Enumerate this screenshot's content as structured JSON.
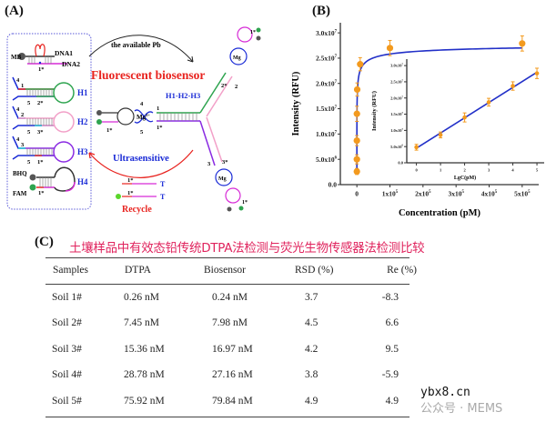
{
  "panel_a": {
    "label": "(A)",
    "legend_box": {
      "dna1": "DNA1",
      "dna2": "DNA2",
      "mb": "MB",
      "dna_site": "1*",
      "hairpins": [
        {
          "name": "H1",
          "top_num": "4",
          "mid_num": "1",
          "bot_nums": [
            "5",
            "2*"
          ]
        },
        {
          "name": "H2",
          "top_num": "4",
          "mid_num": "2",
          "bot_nums": [
            "5",
            "3*"
          ]
        },
        {
          "name": "H3",
          "top_num": "4",
          "mid_num": "3",
          "bot_nums": [
            "5",
            "1*"
          ]
        },
        {
          "name": "H4",
          "quencher": "BHQ",
          "fluor": "FAM",
          "site": "1*"
        }
      ]
    },
    "arrow_top_label": "the available Pb",
    "title": "Fluorescent biosensor",
    "complex_label": "H1-H2-H3",
    "arrow_bottom_label": "Ultrasensitive",
    "recycle_label": "Recycle",
    "mg": "Mg",
    "mg_charge": "2+",
    "strand_site": "1*",
    "strand_end": "T",
    "junction_nums": {
      "n4": "4",
      "n5": "5",
      "n1": "1",
      "n1s": "1*",
      "n2": "2",
      "n2s": "2*",
      "n3": "3",
      "n3s": "3*"
    },
    "colors": {
      "title": "#e8231f",
      "label_blue": "#1a2bd6",
      "box_border": "#5a5ad8",
      "h1": "#2ea44f",
      "h2": "#f2a0c8",
      "h3": "#8a2be2",
      "strand_magenta": "#d62ad6",
      "red": "#e8231f",
      "fam": "#2ea44f"
    }
  },
  "panel_b": {
    "label": "(B)"
  },
  "chart_data": [
    {
      "type": "scatter",
      "xlabel": "Concentration (pM)",
      "ylabel": "Intensity (RFU)",
      "xlim": [
        -50000,
        550000
      ],
      "ylim": [
        0,
        32000000
      ],
      "x_ticks": [
        {
          "v": 0,
          "label": "0"
        },
        {
          "v": 100000,
          "label": "1x10",
          "exp": "5"
        },
        {
          "v": 200000,
          "label": "2x10",
          "exp": "5"
        },
        {
          "v": 300000,
          "label": "3x10",
          "exp": "5"
        },
        {
          "v": 400000,
          "label": "4x10",
          "exp": "5"
        },
        {
          "v": 500000,
          "label": "5x10",
          "exp": "5"
        }
      ],
      "y_ticks": [
        {
          "v": 0,
          "label": "0.0"
        },
        {
          "v": 5000000,
          "label": "5.0x10",
          "exp": "6"
        },
        {
          "v": 10000000,
          "label": "1.0x10",
          "exp": "7"
        },
        {
          "v": 15000000,
          "label": "1.5x10",
          "exp": "7"
        },
        {
          "v": 20000000,
          "label": "2.0x10",
          "exp": "7"
        },
        {
          "v": 25000000,
          "label": "2.5x10",
          "exp": "7"
        },
        {
          "v": 30000000,
          "label": "3.0x10",
          "exp": "7"
        }
      ],
      "x": [
        0,
        1,
        10,
        100,
        1000,
        10000,
        100000,
        500000
      ],
      "y": [
        2600000,
        5000000,
        8700000,
        14000000,
        18800000,
        23800000,
        27000000,
        27900000
      ],
      "error": [
        600000,
        900000,
        1000000,
        1500000,
        1300000,
        1300000,
        1500000,
        1500000
      ],
      "fit": "saturation curve",
      "marker_color": "#f39a1e",
      "line_color": "#2230c8",
      "grid": false
    },
    {
      "type": "scatter",
      "inset": true,
      "xlabel": "LgC(pM)",
      "ylabel": "Intensity (RFU)",
      "xlim": [
        -0.4,
        5.3
      ],
      "ylim": [
        0,
        32000000
      ],
      "x_ticks": [
        {
          "v": 0,
          "label": "0"
        },
        {
          "v": 1,
          "label": "1"
        },
        {
          "v": 2,
          "label": "2"
        },
        {
          "v": 3,
          "label": "3"
        },
        {
          "v": 4,
          "label": "4"
        },
        {
          "v": 5,
          "label": "5"
        }
      ],
      "y_ticks": [
        {
          "v": 0,
          "label": "0.0"
        },
        {
          "v": 5000000,
          "label": "5.0x10",
          "exp": "6"
        },
        {
          "v": 10000000,
          "label": "1.0x10",
          "exp": "7"
        },
        {
          "v": 15000000,
          "label": "1.5x10",
          "exp": "7"
        },
        {
          "v": 20000000,
          "label": "2.0x10",
          "exp": "7"
        },
        {
          "v": 25000000,
          "label": "2.5x10",
          "exp": "7"
        },
        {
          "v": 30000000,
          "label": "3.0x10",
          "exp": "7"
        }
      ],
      "x": [
        0,
        1,
        2,
        3,
        4,
        5
      ],
      "y": [
        4800000,
        8600000,
        14000000,
        18700000,
        23700000,
        27600000
      ],
      "error": [
        900000,
        900000,
        1400000,
        1200000,
        1300000,
        1600000
      ],
      "fit": "linear",
      "marker_color": "#f39a1e",
      "line_color": "#2230c8",
      "grid": false
    }
  ],
  "panel_c": {
    "label": "(C)",
    "title": "土壤样品中有效态铅传统DTPA法检测与荧光生物传感器法检测比较",
    "title_color": "#e0245e",
    "headers": [
      "Samples",
      "DTPA",
      "Biosensor",
      "RSD (%)",
      "Re (%)"
    ],
    "rows": [
      [
        "Soil 1#",
        "0.26 nM",
        "0.24 nM",
        "3.7",
        "-8.3"
      ],
      [
        "Soil 2#",
        "7.45 nM",
        "7.98 nM",
        "4.5",
        "6.6"
      ],
      [
        "Soil 3#",
        "15.36 nM",
        "16.97 nM",
        "4.2",
        "9.5"
      ],
      [
        "Soil 4#",
        "28.78 nM",
        "27.16 nM",
        "3.8",
        "-5.9"
      ],
      [
        "Soil 5#",
        "75.92 nM",
        "79.84 nM",
        "4.9",
        "4.9"
      ]
    ]
  },
  "watermark": {
    "site": "ybx8.cn",
    "account": "公众号 · MEMS"
  }
}
